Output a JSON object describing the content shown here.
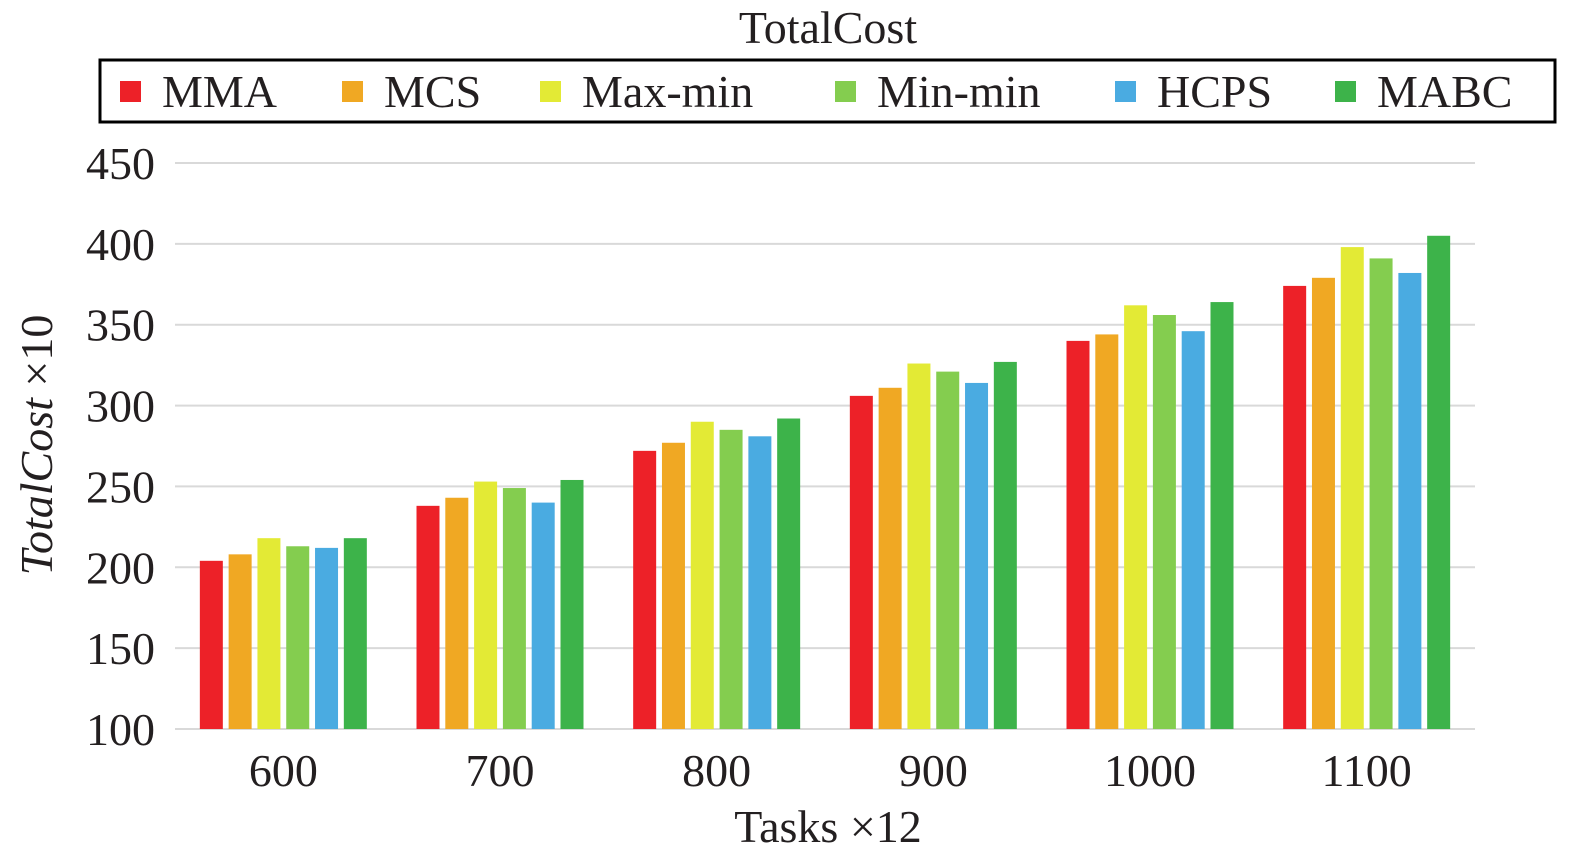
{
  "chart_data": {
    "type": "bar",
    "title": "TotalCost",
    "xlabel": "Tasks ×12",
    "ylabel_italic": "TotalCost",
    "ylabel_suffix": " ×10",
    "categories": [
      "600",
      "700",
      "800",
      "900",
      "1000",
      "1100"
    ],
    "yticks": [
      100,
      150,
      200,
      250,
      300,
      350,
      400,
      450
    ],
    "ylim": [
      100,
      450
    ],
    "grid": true,
    "legend_position": "top",
    "series": [
      {
        "name": "MMA",
        "color": "#ed2128",
        "values": [
          204,
          238,
          272,
          306,
          340,
          374
        ]
      },
      {
        "name": "MCS",
        "color": "#f0a823",
        "values": [
          208,
          243,
          277,
          311,
          344,
          379
        ]
      },
      {
        "name": "Max-min",
        "color": "#e3ea35",
        "values": [
          218,
          253,
          290,
          326,
          362,
          398
        ]
      },
      {
        "name": "Min-min",
        "color": "#84cd4f",
        "values": [
          213,
          249,
          285,
          321,
          356,
          391
        ]
      },
      {
        "name": "HCPS",
        "color": "#4aabe1",
        "values": [
          212,
          240,
          281,
          314,
          346,
          382
        ]
      },
      {
        "name": "MABC",
        "color": "#3db34a",
        "values": [
          218,
          254,
          292,
          327,
          364,
          405
        ]
      }
    ]
  }
}
